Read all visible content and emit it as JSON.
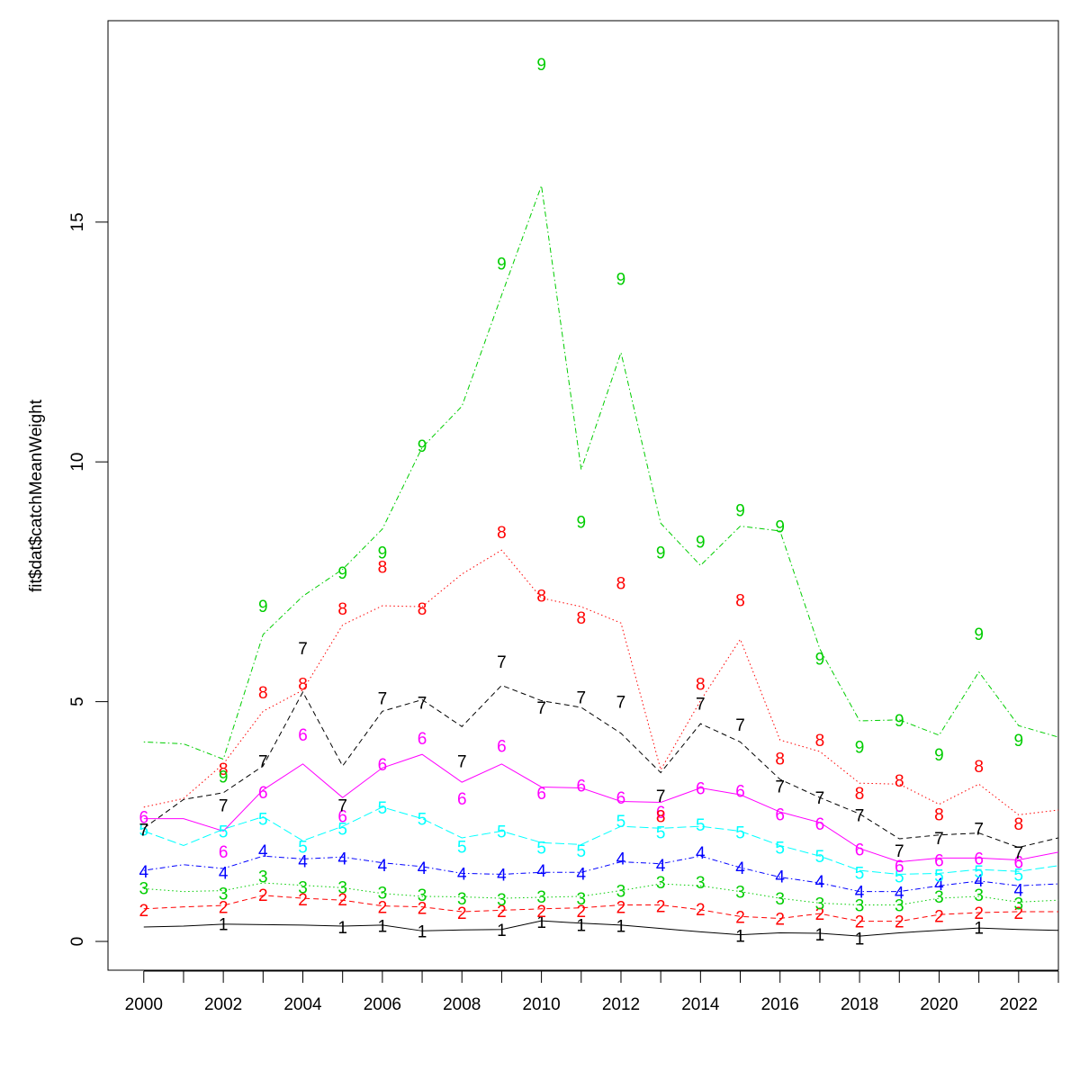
{
  "chart_data": {
    "type": "line",
    "title": "",
    "xlabel": "",
    "ylabel": "fit$dat$catchMeanWeight",
    "x": [
      2000,
      2001,
      2002,
      2003,
      2004,
      2005,
      2006,
      2007,
      2008,
      2009,
      2010,
      2011,
      2012,
      2013,
      2014,
      2015,
      2016,
      2017,
      2018,
      2019,
      2020,
      2021,
      2022,
      2023
    ],
    "xlim": [
      1999.1,
      2023
    ],
    "ylim": [
      -0.6,
      19.2
    ],
    "x_ticks": [
      2000,
      2002,
      2004,
      2006,
      2008,
      2010,
      2012,
      2014,
      2016,
      2018,
      2020,
      2022
    ],
    "x_minor_ticks": [
      2001,
      2003,
      2005,
      2007,
      2009,
      2011,
      2013,
      2015,
      2017,
      2019,
      2021,
      2023
    ],
    "y_ticks": [
      0,
      5,
      10,
      15
    ],
    "grid": false,
    "legend": "none",
    "series": [
      {
        "name": "1",
        "color": "#000000",
        "dash": "solid",
        "values": [
          0.3,
          0.32,
          0.36,
          0.35,
          0.34,
          0.32,
          0.34,
          0.22,
          0.24,
          0.25,
          0.43,
          0.38,
          0.34,
          0.27,
          0.2,
          0.14,
          0.18,
          0.17,
          0.11,
          0.18,
          0.23,
          0.28,
          0.25,
          0.23
        ],
        "labels": [
          null,
          null,
          0.37,
          null,
          null,
          0.3,
          0.33,
          0.22,
          null,
          0.24,
          0.41,
          0.35,
          0.33,
          null,
          null,
          0.12,
          null,
          0.15,
          0.07,
          null,
          null,
          0.29,
          null,
          null
        ]
      },
      {
        "name": "2",
        "color": "#ff0000",
        "dash": "dashed",
        "values": [
          0.68,
          0.72,
          0.75,
          0.96,
          0.9,
          0.86,
          0.74,
          0.72,
          0.62,
          0.65,
          0.68,
          0.7,
          0.76,
          0.76,
          0.66,
          0.52,
          0.48,
          0.58,
          0.42,
          0.42,
          0.56,
          0.6,
          0.62,
          0.62
        ],
        "labels": [
          0.66,
          null,
          0.72,
          0.98,
          0.88,
          0.88,
          0.72,
          0.7,
          0.6,
          0.64,
          0.64,
          0.64,
          0.72,
          0.74,
          0.68,
          0.52,
          0.48,
          0.58,
          0.42,
          0.42,
          0.54,
          0.6,
          0.6,
          null
        ]
      },
      {
        "name": "3",
        "color": "#00cd00",
        "dash": "dotted",
        "values": [
          1.1,
          1.04,
          1.06,
          1.22,
          1.17,
          1.12,
          1.0,
          0.94,
          0.93,
          0.9,
          0.92,
          0.94,
          1.06,
          1.2,
          1.16,
          1.04,
          0.9,
          0.8,
          0.76,
          0.76,
          0.9,
          0.94,
          0.82,
          0.86
        ],
        "labels": [
          1.12,
          null,
          1.0,
          1.36,
          1.14,
          1.14,
          1.02,
          0.98,
          0.9,
          0.88,
          0.94,
          0.9,
          1.06,
          1.24,
          1.24,
          1.04,
          0.9,
          0.8,
          0.76,
          0.76,
          0.94,
          0.98,
          0.8,
          null
        ]
      },
      {
        "name": "4",
        "color": "#0000ff",
        "dash": "dotdash",
        "values": [
          1.48,
          1.6,
          1.52,
          1.78,
          1.72,
          1.76,
          1.64,
          1.56,
          1.42,
          1.4,
          1.44,
          1.44,
          1.66,
          1.62,
          1.78,
          1.54,
          1.34,
          1.22,
          1.04,
          1.04,
          1.16,
          1.26,
          1.16,
          1.2
        ],
        "labels": [
          1.46,
          null,
          1.44,
          1.9,
          1.68,
          1.74,
          1.6,
          1.54,
          1.42,
          1.4,
          1.48,
          1.42,
          1.74,
          1.6,
          1.86,
          1.54,
          1.36,
          1.26,
          1.04,
          1.02,
          1.2,
          1.28,
          1.08,
          null
        ]
      },
      {
        "name": "5",
        "color": "#00ffff",
        "dash": "longdash",
        "values": [
          2.3,
          2.0,
          2.34,
          2.6,
          2.1,
          2.4,
          2.8,
          2.56,
          2.16,
          2.3,
          2.06,
          2.02,
          2.4,
          2.36,
          2.4,
          2.3,
          2.0,
          1.78,
          1.48,
          1.4,
          1.42,
          1.5,
          1.46,
          1.58
        ],
        "labels": [
          2.34,
          null,
          2.3,
          2.56,
          1.98,
          2.36,
          2.8,
          2.56,
          1.98,
          2.3,
          1.96,
          1.9,
          2.52,
          2.28,
          2.44,
          2.28,
          1.96,
          1.78,
          1.44,
          1.36,
          1.38,
          1.46,
          1.4,
          null
        ]
      },
      {
        "name": "6",
        "color": "#ff00ff",
        "dash": "solid",
        "values": [
          2.56,
          2.56,
          2.3,
          3.16,
          3.7,
          3.0,
          3.62,
          3.9,
          3.32,
          3.7,
          3.22,
          3.2,
          2.92,
          2.9,
          3.2,
          3.06,
          2.7,
          2.48,
          1.94,
          1.66,
          1.74,
          1.74,
          1.7,
          1.86
        ],
        "labels": [
          2.6,
          null,
          1.88,
          3.12,
          4.32,
          2.62,
          3.7,
          4.24,
          2.98,
          4.08,
          3.1,
          3.26,
          3.0,
          2.7,
          3.2,
          3.14,
          2.66,
          2.46,
          1.92,
          1.58,
          1.7,
          1.74,
          1.66,
          null
        ]
      },
      {
        "name": "7",
        "color": "#000000",
        "dash": "dashed",
        "values": [
          2.36,
          2.96,
          3.1,
          3.66,
          5.2,
          3.66,
          4.8,
          5.04,
          4.48,
          5.34,
          5.02,
          4.88,
          4.34,
          3.52,
          4.54,
          4.16,
          3.38,
          3.0,
          2.66,
          2.14,
          2.22,
          2.26,
          1.96,
          2.16
        ],
        "labels": [
          2.34,
          null,
          2.84,
          3.76,
          6.12,
          2.84,
          5.08,
          4.98,
          3.76,
          5.84,
          4.88,
          5.1,
          5.0,
          3.04,
          4.96,
          4.52,
          3.24,
          3.0,
          2.64,
          1.9,
          2.16,
          2.36,
          1.86,
          null
        ]
      },
      {
        "name": "8",
        "color": "#ff0000",
        "dash": "dotted",
        "values": [
          2.8,
          2.98,
          3.7,
          4.8,
          5.24,
          6.6,
          7.0,
          6.98,
          7.66,
          8.16,
          7.16,
          6.98,
          6.64,
          3.58,
          5.02,
          6.3,
          4.2,
          3.96,
          3.3,
          3.28,
          2.86,
          3.28,
          2.64,
          2.74
        ],
        "labels": [
          null,
          null,
          3.6,
          5.2,
          5.38,
          6.94,
          7.82,
          6.94,
          null,
          8.54,
          7.22,
          6.76,
          7.48,
          2.62,
          5.38,
          7.12,
          3.82,
          4.2,
          3.1,
          3.36,
          2.66,
          3.66,
          2.46,
          null
        ]
      },
      {
        "name": "9",
        "color": "#00cd00",
        "dash": "dotdash",
        "values": [
          4.16,
          4.12,
          3.8,
          6.4,
          7.2,
          7.76,
          8.6,
          10.3,
          11.16,
          13.48,
          15.76,
          9.84,
          12.28,
          8.72,
          7.84,
          8.66,
          8.56,
          6.1,
          4.6,
          4.62,
          4.3,
          5.62,
          4.5,
          4.26
        ],
        "labels": [
          null,
          null,
          3.44,
          7.0,
          null,
          7.7,
          8.12,
          10.34,
          null,
          14.14,
          18.3,
          8.76,
          13.82,
          8.12,
          8.34,
          9.0,
          8.66,
          5.9,
          4.06,
          4.62,
          3.9,
          6.42,
          4.2,
          null
        ]
      }
    ]
  }
}
